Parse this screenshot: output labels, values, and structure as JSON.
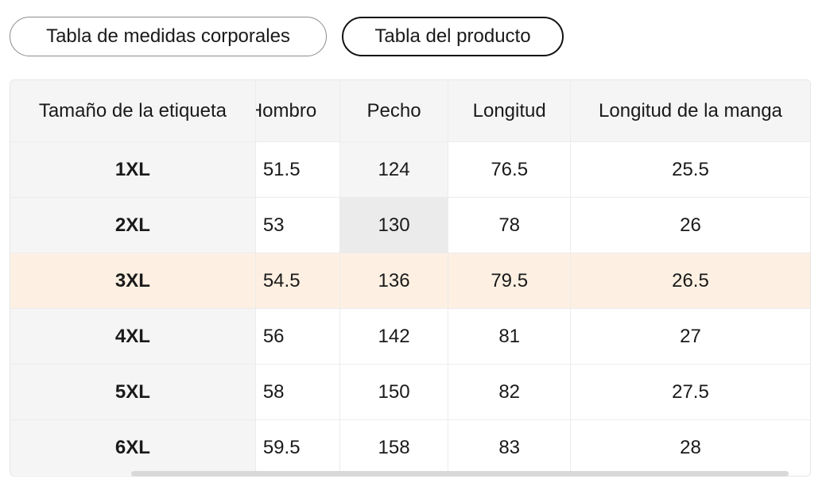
{
  "tabs": [
    {
      "label": "Tabla de medidas corporales",
      "active": false
    },
    {
      "label": "Tabla del producto",
      "active": true
    }
  ],
  "table": {
    "headers": [
      "Tamaño de la etiqueta",
      "Hombro",
      "Pecho",
      "Longitud",
      "Longitud de la manga"
    ],
    "visible_headers": [
      "Tamaño de la etiqueta",
      "lombro",
      "Pecho",
      "Longitud",
      "Longitud de la manga"
    ],
    "rows": [
      [
        "1XL",
        "51.5",
        "124",
        "76.5",
        "25.5"
      ],
      [
        "2XL",
        "53",
        "130",
        "78",
        "26"
      ],
      [
        "3XL",
        "54.5",
        "136",
        "79.5",
        "26.5"
      ],
      [
        "4XL",
        "56",
        "142",
        "81",
        "27"
      ],
      [
        "5XL",
        "58",
        "150",
        "82",
        "27.5"
      ],
      [
        "6XL",
        "59.5",
        "158",
        "83",
        "28"
      ]
    ],
    "selected_row": 2,
    "hovered_cell": [
      1,
      2
    ]
  },
  "colors": {
    "selected_row_bg": "#fdf0e2",
    "label_column_bg": "#f5f5f5",
    "hover_cell_bg": "#ebebeb"
  }
}
